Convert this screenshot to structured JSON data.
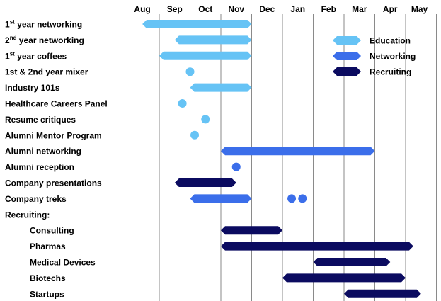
{
  "chart_data": {
    "type": "gantt",
    "months": [
      "Aug",
      "Sep",
      "Oct",
      "Nov",
      "Dec",
      "Jan",
      "Feb",
      "Mar",
      "Apr",
      "May"
    ],
    "legend": [
      {
        "name": "Education",
        "color": "#66c3f5"
      },
      {
        "name": "Networking",
        "color": "#3b6eea"
      },
      {
        "name": "Recruiting",
        "color": "#0b0b60"
      }
    ],
    "rows": [
      {
        "label": "1st year networking",
        "sup": "st",
        "items": [
          {
            "kind": "bar",
            "category": "Education",
            "start": -0.55,
            "end": 3.0
          }
        ]
      },
      {
        "label": "2nd year networking",
        "sup": "nd",
        "items": [
          {
            "kind": "bar",
            "category": "Education",
            "start": 0.5,
            "end": 3.0
          }
        ]
      },
      {
        "label": "1st year coffees",
        "sup": "st",
        "items": [
          {
            "kind": "bar",
            "category": "Education",
            "start": 0.0,
            "end": 3.0
          }
        ]
      },
      {
        "label": "1st & 2nd year mixer",
        "items": [
          {
            "kind": "dot",
            "category": "Education",
            "at": 1.0
          }
        ]
      },
      {
        "label": "Industry 101s",
        "items": [
          {
            "kind": "bar",
            "category": "Education",
            "start": 1.0,
            "end": 3.0
          }
        ]
      },
      {
        "label": "Healthcare Careers Panel",
        "items": [
          {
            "kind": "dot",
            "category": "Education",
            "at": 0.75
          }
        ]
      },
      {
        "label": "Resume critiques",
        "items": [
          {
            "kind": "dot",
            "category": "Education",
            "at": 1.5
          }
        ]
      },
      {
        "label": "Alumni Mentor Program",
        "items": [
          {
            "kind": "dot",
            "category": "Education",
            "at": 1.15
          }
        ]
      },
      {
        "label": "Alumni networking",
        "items": [
          {
            "kind": "bar",
            "category": "Networking",
            "start": 2.0,
            "end": 7.0
          }
        ]
      },
      {
        "label": "Alumni reception",
        "items": [
          {
            "kind": "dot",
            "category": "Networking",
            "at": 2.5
          }
        ]
      },
      {
        "label": "Company presentations",
        "items": [
          {
            "kind": "bar",
            "category": "Recruiting",
            "start": 0.5,
            "end": 2.5
          }
        ]
      },
      {
        "label": "Company treks",
        "items": [
          {
            "kind": "bar",
            "category": "Networking",
            "start": 1.0,
            "end": 3.0
          },
          {
            "kind": "dot",
            "category": "Networking",
            "at": 4.3
          },
          {
            "kind": "dot",
            "category": "Networking",
            "at": 4.65
          }
        ]
      },
      {
        "label": "Recruiting:",
        "items": []
      },
      {
        "label": "Consulting",
        "indent": true,
        "items": [
          {
            "kind": "bar",
            "category": "Recruiting",
            "start": 2.0,
            "end": 4.0
          }
        ]
      },
      {
        "label": "Pharmas",
        "indent": true,
        "items": [
          {
            "kind": "bar",
            "category": "Recruiting",
            "start": 2.0,
            "end": 8.25
          }
        ]
      },
      {
        "label": "Medical Devices",
        "indent": true,
        "items": [
          {
            "kind": "bar",
            "category": "Recruiting",
            "start": 5.0,
            "end": 7.5
          }
        ]
      },
      {
        "label": "Biotechs",
        "indent": true,
        "items": [
          {
            "kind": "bar",
            "category": "Recruiting",
            "start": 4.0,
            "end": 8.0
          }
        ]
      },
      {
        "label": "Startups",
        "indent": true,
        "items": [
          {
            "kind": "bar",
            "category": "Recruiting",
            "start": 6.0,
            "end": 8.5
          }
        ]
      }
    ]
  }
}
